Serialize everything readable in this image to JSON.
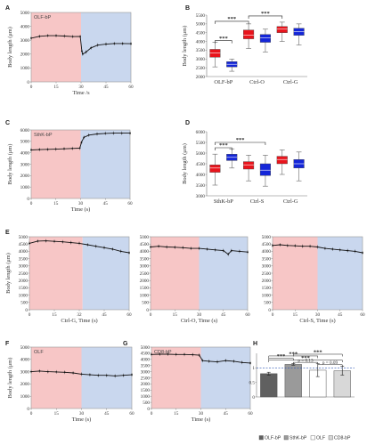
{
  "chart_data": [
    {
      "id": "A",
      "type": "line",
      "panel_label": "A",
      "title": "OLF-bP",
      "xlabel": "Time /s",
      "ylabel": "Body length (μm)",
      "xlim": [
        0,
        60
      ],
      "ylim": [
        0,
        5000
      ],
      "xticks": [
        "0",
        "15",
        "30",
        "45",
        "60"
      ],
      "yticks": [
        "0",
        "1000",
        "2000",
        "3000",
        "4000",
        "5000"
      ],
      "shade": [
        {
          "from": 0,
          "to": 30,
          "color": "#f7c6c6"
        },
        {
          "from": 30,
          "to": 60,
          "color": "#c9d7ee"
        }
      ],
      "series": [
        {
          "x": [
            0,
            5,
            10,
            15,
            20,
            25,
            29.5,
            30.5,
            31,
            33,
            36,
            40,
            45,
            50,
            55,
            60
          ],
          "values": [
            3150,
            3280,
            3330,
            3330,
            3300,
            3260,
            3270,
            2220,
            2000,
            2150,
            2450,
            2650,
            2720,
            2760,
            2760,
            2750
          ]
        }
      ]
    },
    {
      "id": "B",
      "type": "box",
      "panel_label": "B",
      "ylabel": "Body length (μm)",
      "ylim": [
        2000,
        5500
      ],
      "yticks": [
        "2000",
        "2500",
        "3000",
        "3500",
        "4000",
        "4500",
        "5000",
        "5500"
      ],
      "categories": [
        "OLF-bP",
        "Ctrl-O",
        "Ctrl-G"
      ],
      "boxes": [
        {
          "color": "#e8141c",
          "q1": 3100,
          "median": 3350,
          "q3": 3550,
          "whisker_low": 2550,
          "whisker_high": 3950
        },
        {
          "color": "#1426d8",
          "q1": 2550,
          "median": 2700,
          "q3": 2850,
          "whisker_low": 2300,
          "whisker_high": 3000
        },
        {
          "color": "#e8141c",
          "q1": 4150,
          "median": 4350,
          "q3": 4650,
          "whisker_low": 3600,
          "whisker_high": 5000
        },
        {
          "color": "#1426d8",
          "q1": 3950,
          "median": 4200,
          "q3": 4400,
          "whisker_low": 3400,
          "whisker_high": 4700
        },
        {
          "color": "#e8141c",
          "q1": 4500,
          "median": 4700,
          "q3": 4850,
          "whisker_low": 4000,
          "whisker_high": 5100
        },
        {
          "color": "#1426d8",
          "q1": 4350,
          "median": 4550,
          "q3": 4750,
          "whisker_low": 3800,
          "whisker_high": 5000
        }
      ],
      "significance": [
        {
          "from": 0,
          "to": 1,
          "y": 4050,
          "label": "***"
        },
        {
          "from": 0,
          "to": 2,
          "y": 5150,
          "label": "***"
        },
        {
          "from": 2,
          "to": 4,
          "y": 5450,
          "label": "***"
        }
      ]
    },
    {
      "id": "C",
      "type": "line",
      "panel_label": "C",
      "title": "SthK-bP",
      "xlabel": "Time (s)",
      "ylabel": "Body length (μm)",
      "xlim": [
        0,
        60
      ],
      "ylim": [
        0,
        6000
      ],
      "xticks": [
        "0",
        "15",
        "30",
        "45",
        "60"
      ],
      "yticks": [
        "0",
        "1000",
        "2000",
        "3000",
        "4000",
        "5000",
        "6000"
      ],
      "shade": [
        {
          "from": 0,
          "to": 30,
          "color": "#f7c6c6"
        },
        {
          "from": 30,
          "to": 60,
          "color": "#c9d7ee"
        }
      ],
      "series": [
        {
          "x": [
            0,
            5,
            10,
            15,
            20,
            25,
            29.5,
            30.5,
            32,
            35,
            40,
            45,
            50,
            55,
            60
          ],
          "values": [
            4250,
            4280,
            4300,
            4320,
            4350,
            4380,
            4400,
            4900,
            5350,
            5550,
            5650,
            5700,
            5720,
            5720,
            5720
          ]
        }
      ]
    },
    {
      "id": "D",
      "type": "box",
      "panel_label": "D",
      "ylabel": "Body length (μm)",
      "ylim": [
        3000,
        6000
      ],
      "yticks": [
        "3000",
        "3500",
        "4000",
        "4500",
        "5000",
        "5500",
        "6000"
      ],
      "categories": [
        "SthK-bP",
        "Ctrl-S",
        "Ctrl-G"
      ],
      "boxes": [
        {
          "color": "#e8141c",
          "q1": 4100,
          "median": 4300,
          "q3": 4450,
          "whisker_low": 3500,
          "whisker_high": 4950
        },
        {
          "color": "#1426d8",
          "q1": 4650,
          "median": 4800,
          "q3": 4950,
          "whisker_low": 4300,
          "whisker_high": 5200
        },
        {
          "color": "#e8141c",
          "q1": 4250,
          "median": 4450,
          "q3": 4600,
          "whisker_low": 3700,
          "whisker_high": 4900
        },
        {
          "color": "#1426d8",
          "q1": 3950,
          "median": 4200,
          "q3": 4500,
          "whisker_low": 3450,
          "whisker_high": 4900
        },
        {
          "color": "#e8141c",
          "q1": 4500,
          "median": 4700,
          "q3": 4850,
          "whisker_low": 4000,
          "whisker_high": 5150
        },
        {
          "color": "#1426d8",
          "q1": 4300,
          "median": 4500,
          "q3": 4700,
          "whisker_low": 3700,
          "whisker_high": 5050
        }
      ],
      "significance": [
        {
          "from": 0,
          "to": 1,
          "y": 5250,
          "label": "***"
        },
        {
          "from": 0,
          "to": 3,
          "y": 5500,
          "label": "***"
        }
      ]
    },
    {
      "id": "E1",
      "type": "line",
      "panel_label": "E",
      "xlabel": "Ctrl-G, Time (s)",
      "ylabel": "Body length (μm)",
      "xlim": [
        0,
        60
      ],
      "ylim": [
        0,
        5000
      ],
      "xticks": [
        "0",
        "15",
        "32",
        "45",
        "60"
      ],
      "yticks": [
        "0",
        "500",
        "1000",
        "1500",
        "2000",
        "2500",
        "3000",
        "3500",
        "4000",
        "4500",
        "5000"
      ],
      "shade": [
        {
          "from": 0,
          "to": 32,
          "color": "#f7c6c6"
        },
        {
          "from": 32,
          "to": 60,
          "color": "#c9d7ee"
        }
      ],
      "series": [
        {
          "x": [
            0,
            5,
            10,
            15,
            20,
            25,
            30,
            35,
            40,
            45,
            50,
            55,
            60
          ],
          "values": [
            4550,
            4700,
            4720,
            4680,
            4650,
            4600,
            4550,
            4450,
            4350,
            4250,
            4150,
            4000,
            3900
          ]
        }
      ]
    },
    {
      "id": "E2",
      "type": "line",
      "xlabel": "Ctrl-O, Time (s)",
      "xlim": [
        0,
        60
      ],
      "ylim": [
        0,
        5000
      ],
      "xticks": [
        "0",
        "15",
        "30",
        "45",
        "60"
      ],
      "yticks": [
        "0",
        "500",
        "1000",
        "1500",
        "2000",
        "2500",
        "3000",
        "3500",
        "4000",
        "4500",
        "5000"
      ],
      "shade": [
        {
          "from": 0,
          "to": 30,
          "color": "#f7c6c6"
        },
        {
          "from": 30,
          "to": 60,
          "color": "#c9d7ee"
        }
      ],
      "series": [
        {
          "x": [
            0,
            5,
            10,
            15,
            20,
            25,
            30,
            35,
            40,
            45,
            48,
            50,
            55,
            60
          ],
          "values": [
            4300,
            4350,
            4300,
            4280,
            4250,
            4200,
            4200,
            4150,
            4100,
            4050,
            3800,
            4050,
            4000,
            3950
          ]
        }
      ]
    },
    {
      "id": "E3",
      "type": "line",
      "xlabel": "Ctrl-S, Time (s)",
      "xlim": [
        0,
        60
      ],
      "ylim": [
        0,
        5000
      ],
      "xticks": [
        "0",
        "15",
        "30",
        "45",
        "60"
      ],
      "yticks": [
        "0",
        "500",
        "1000",
        "1500",
        "2000",
        "2500",
        "3000",
        "3500",
        "4000",
        "4500",
        "5000"
      ],
      "shade": [
        {
          "from": 0,
          "to": 30,
          "color": "#f7c6c6"
        },
        {
          "from": 30,
          "to": 60,
          "color": "#c9d7ee"
        }
      ],
      "series": [
        {
          "x": [
            0,
            5,
            10,
            15,
            20,
            25,
            30,
            35,
            40,
            45,
            50,
            55,
            60
          ],
          "values": [
            4400,
            4450,
            4400,
            4380,
            4350,
            4350,
            4300,
            4200,
            4150,
            4100,
            4050,
            4000,
            3900
          ]
        }
      ]
    },
    {
      "id": "F",
      "type": "line",
      "panel_label": "F",
      "title": "OLF",
      "xlabel": "Time (s)",
      "ylabel": "Body length (μm)",
      "xlim": [
        0,
        60
      ],
      "ylim": [
        0,
        5000
      ],
      "xticks": [
        "0",
        "15",
        "30",
        "45",
        "60"
      ],
      "yticks": [
        "0",
        "1000",
        "2000",
        "3000",
        "4000",
        "5000"
      ],
      "shade": [
        {
          "from": 0,
          "to": 30,
          "color": "#f7c6c6"
        },
        {
          "from": 30,
          "to": 60,
          "color": "#c9d7ee"
        }
      ],
      "series": [
        {
          "x": [
            0,
            5,
            10,
            15,
            20,
            25,
            30,
            35,
            40,
            45,
            50,
            55,
            60
          ],
          "values": [
            3000,
            3050,
            3000,
            2980,
            2950,
            2900,
            2800,
            2750,
            2700,
            2700,
            2650,
            2700,
            2750
          ]
        }
      ]
    },
    {
      "id": "G",
      "type": "line",
      "panel_label": "G",
      "title": "CD8-bP",
      "xlabel": "Time (s)",
      "xlim": [
        0,
        60
      ],
      "ylim": [
        0,
        5000
      ],
      "xticks": [
        "0",
        "15",
        "30",
        "45",
        "60"
      ],
      "yticks": [
        "0",
        "500",
        "1000",
        "1500",
        "2000",
        "2500",
        "3000",
        "3500",
        "4000",
        "4500",
        "5000"
      ],
      "shade": [
        {
          "from": 0,
          "to": 30,
          "color": "#f7c6c6"
        },
        {
          "from": 30,
          "to": 60,
          "color": "#c9d7ee"
        }
      ],
      "series": [
        {
          "x": [
            0,
            5,
            10,
            15,
            20,
            25,
            29,
            31,
            35,
            40,
            45,
            50,
            55,
            60
          ],
          "values": [
            4400,
            4420,
            4420,
            4400,
            4400,
            4380,
            4350,
            3900,
            3850,
            3800,
            3900,
            3850,
            3750,
            3700
          ]
        }
      ]
    },
    {
      "id": "H",
      "type": "bar",
      "panel_label": "H",
      "ylim": [
        0,
        1.5
      ],
      "yticks": [
        "0",
        "0.5",
        "1"
      ],
      "reference_line": 1,
      "categories": [
        "OLF-bP",
        "SthK-bP",
        "OLF",
        "CD8-bP"
      ],
      "values": [
        0.8,
        1.12,
        0.92,
        0.9
      ],
      "errors": [
        0.05,
        0.03,
        0.22,
        0.15
      ],
      "colors": [
        "#606060",
        "#9a9a9a",
        "#ffffff",
        "#d8d8d8"
      ],
      "significance": [
        {
          "from": 0,
          "to": 1,
          "y": 1.33,
          "label": "***"
        },
        {
          "from": 0,
          "to": 2,
          "y": 1.41,
          "label": "***"
        },
        {
          "from": 1,
          "to": 3,
          "y": 1.47,
          "label": "***"
        },
        {
          "from": 0,
          "to": 3,
          "y": 1.27,
          "label": "***"
        },
        {
          "from": 1,
          "to": 2,
          "y": 1.19,
          "label": "p = 0.13"
        },
        {
          "from": 2,
          "to": 3,
          "y": 1.11,
          "label": "p = 0.09"
        }
      ]
    }
  ]
}
